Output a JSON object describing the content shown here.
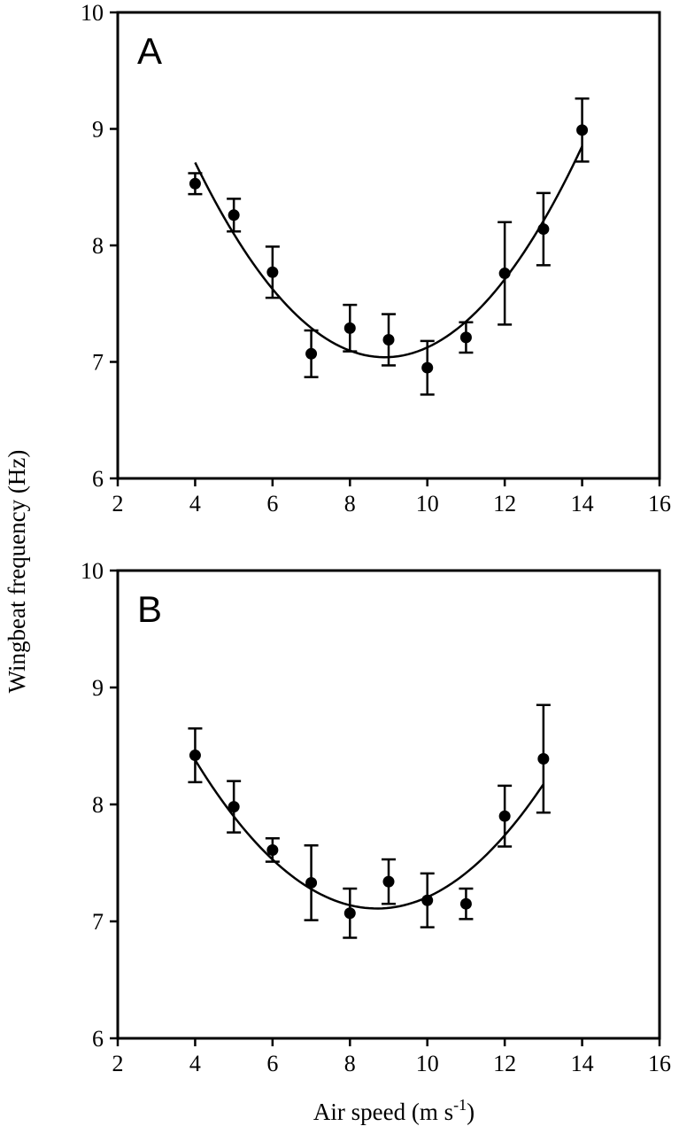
{
  "chart_data": [
    {
      "type": "scatter",
      "panel_label": "A",
      "xlim": [
        2,
        16
      ],
      "ylim": [
        6,
        10
      ],
      "xticks": [
        2,
        4,
        6,
        8,
        10,
        12,
        14,
        16
      ],
      "yticks": [
        6,
        7,
        8,
        9,
        10
      ],
      "grid": false,
      "series": [
        {
          "x": [
            4,
            5,
            6,
            7,
            8,
            9,
            10,
            11,
            12,
            13,
            14
          ],
          "y": [
            8.53,
            8.26,
            7.77,
            7.07,
            7.29,
            7.19,
            6.95,
            7.21,
            7.76,
            8.14,
            8.99
          ],
          "error": [
            0.09,
            0.14,
            0.22,
            0.2,
            0.2,
            0.22,
            0.23,
            0.13,
            0.44,
            0.31,
            0.27
          ]
        }
      ],
      "fit": {
        "kind": "quadratic",
        "x_range": [
          4,
          14
        ],
        "vertex_x": 8.9,
        "vertex_y": 7.04,
        "a": 0.0696
      }
    },
    {
      "type": "scatter",
      "panel_label": "B",
      "xlim": [
        2,
        16
      ],
      "ylim": [
        6,
        10
      ],
      "xticks": [
        2,
        4,
        6,
        8,
        10,
        12,
        14,
        16
      ],
      "yticks": [
        6,
        7,
        8,
        9,
        10
      ],
      "grid": false,
      "series": [
        {
          "x": [
            4,
            5,
            6,
            7,
            8,
            9,
            10,
            11,
            12,
            13
          ],
          "y": [
            8.42,
            7.98,
            7.61,
            7.33,
            7.07,
            7.34,
            7.18,
            7.15,
            7.9,
            8.39
          ],
          "error": [
            0.23,
            0.22,
            0.1,
            0.32,
            0.21,
            0.19,
            0.23,
            0.13,
            0.26,
            0.46
          ]
        }
      ],
      "fit": {
        "kind": "quadratic",
        "x_range": [
          4,
          13
        ],
        "vertex_x": 8.7,
        "vertex_y": 7.11,
        "a": 0.0575
      }
    }
  ],
  "ylabel": "Wingbeat frequency (Hz)",
  "xlabel": {
    "main": "Air speed (m s",
    "sup": "-1",
    "close": ")"
  }
}
